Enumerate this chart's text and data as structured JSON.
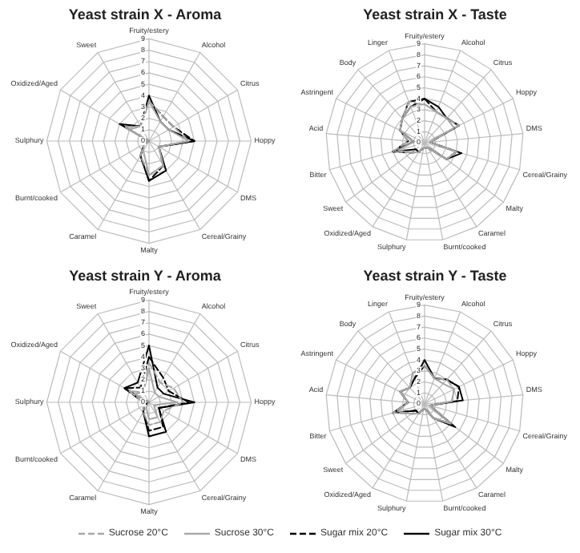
{
  "chart_data": [
    {
      "type": "radar",
      "title": "Yeast strain X - Aroma",
      "categories": [
        "Fruity/estery",
        "Alcohol",
        "Citrus",
        "Hoppy",
        "DMS",
        "Cereal/Grainy",
        "Malty",
        "Caramel",
        "Burnt/cooked",
        "Sulphury",
        "Oxidized/Aged",
        "Sweet"
      ],
      "ylim": [
        0,
        9
      ],
      "yticks": [
        0,
        1,
        2,
        3,
        4,
        5,
        6,
        7,
        8,
        9
      ],
      "grid": true,
      "marker": "none",
      "series": [
        {
          "color": "#a6a6a6",
          "line_style": "dashed",
          "values": [
            3.5,
            2.5,
            2.5,
            3.5,
            1,
            2.5,
            3,
            1.5,
            0.5,
            0,
            2.5,
            1.5
          ]
        },
        {
          "color": "#a6a6a6",
          "line_style": "solid",
          "values": [
            3.5,
            2,
            2,
            3.5,
            1,
            2.5,
            3,
            1,
            0.5,
            0,
            2,
            1.5
          ]
        },
        {
          "color": "#000000",
          "line_style": "dashed",
          "values": [
            3.5,
            2.5,
            2.5,
            4,
            1,
            2.5,
            3.5,
            1.5,
            0.5,
            0,
            2.5,
            1.5
          ]
        },
        {
          "color": "#000000",
          "line_style": "solid",
          "values": [
            4,
            2,
            2,
            4,
            1,
            3,
            3.5,
            1.5,
            0.5,
            0,
            3,
            1.5
          ]
        }
      ]
    },
    {
      "type": "radar",
      "title": "Yeast strain X - Taste",
      "categories": [
        "Fruity/estery",
        "Alcohol",
        "Citrus",
        "Hoppy",
        "DMS",
        "Cereal/Grainy",
        "Malty",
        "Caramel",
        "Burnt/cooked",
        "Sulphury",
        "Oxidized/Aged",
        "Sweet",
        "Bitter",
        "Acid",
        "Astringent",
        "Body",
        "Linger"
      ],
      "ylim": [
        0,
        9
      ],
      "yticks": [
        0,
        1,
        2,
        3,
        4,
        5,
        6,
        7,
        8,
        9
      ],
      "grid": true,
      "marker": "none",
      "series": [
        {
          "color": "#a6a6a6",
          "line_style": "dashed",
          "values": [
            3.5,
            3,
            3,
            3.5,
            0.5,
            3,
            2.5,
            0.5,
            0.5,
            0.5,
            1,
            1.5,
            3,
            1.5,
            2.5,
            3,
            4
          ]
        },
        {
          "color": "#a6a6a6",
          "line_style": "solid",
          "values": [
            3.5,
            3,
            3,
            3,
            0.5,
            3,
            2.5,
            0.5,
            0.5,
            0.5,
            1,
            1.5,
            2.5,
            1,
            2.5,
            3,
            3.5
          ]
        },
        {
          "color": "#000000",
          "line_style": "dashed",
          "values": [
            4,
            3,
            3,
            3.5,
            0.5,
            3,
            2.5,
            0.5,
            0.5,
            0.5,
            1,
            1.5,
            3,
            1.5,
            2.5,
            3,
            4
          ]
        },
        {
          "color": "#000000",
          "line_style": "solid",
          "values": [
            4,
            3.5,
            3,
            3.5,
            0.5,
            3.5,
            2.5,
            0.5,
            0.5,
            0.5,
            1,
            1,
            3,
            1,
            2.5,
            3,
            3.5
          ]
        }
      ]
    },
    {
      "type": "radar",
      "title": "Yeast strain Y - Aroma",
      "categories": [
        "Fruity/estery",
        "Alcohol",
        "Citrus",
        "Hoppy",
        "DMS",
        "Cereal/Grainy",
        "Malty",
        "Caramel",
        "Burnt/cooked",
        "Sulphury",
        "Oxidized/Aged",
        "Sweet"
      ],
      "ylim": [
        0,
        9
      ],
      "yticks": [
        0,
        1,
        2,
        3,
        4,
        5,
        6,
        7,
        8,
        9
      ],
      "grid": true,
      "marker": "none",
      "series": [
        {
          "color": "#a6a6a6",
          "line_style": "dashed",
          "values": [
            3.5,
            2,
            2.5,
            3,
            1.5,
            2,
            2,
            1,
            0.5,
            0.5,
            2,
            1
          ]
        },
        {
          "color": "#a6a6a6",
          "line_style": "solid",
          "values": [
            3,
            1,
            1,
            2.5,
            0.5,
            1.5,
            1.5,
            0.5,
            0,
            0,
            1.5,
            1
          ]
        },
        {
          "color": "#000000",
          "line_style": "dashed",
          "values": [
            4,
            2.5,
            2,
            3.5,
            1,
            2.5,
            2.5,
            1,
            0.5,
            0.5,
            2.5,
            1.5
          ]
        },
        {
          "color": "#000000",
          "line_style": "solid",
          "values": [
            5,
            1.5,
            1.5,
            4,
            1,
            3,
            3,
            1,
            0.5,
            0,
            2.5,
            2
          ]
        }
      ]
    },
    {
      "type": "radar",
      "title": "Yeast strain Y - Taste",
      "categories": [
        "Fruity/estery",
        "Alcohol",
        "Citrus",
        "Hoppy",
        "DMS",
        "Cereal/Grainy",
        "Malty",
        "Caramel",
        "Burnt/cooked",
        "Sulphury",
        "Oxidized/Aged",
        "Sweet",
        "Bitter",
        "Acid",
        "Astringent",
        "Body",
        "Linger"
      ],
      "ylim": [
        0,
        9
      ],
      "yticks": [
        0,
        1,
        2,
        3,
        4,
        5,
        6,
        7,
        8,
        9
      ],
      "grid": true,
      "marker": "none",
      "legend": "bottom",
      "series": [
        {
          "name": "Sucrose 20°C",
          "color": "#a6a6a6",
          "line_style": "dashed",
          "values": [
            3.5,
            2.5,
            3,
            3,
            2.5,
            0.5,
            3,
            1.5,
            0.5,
            0.5,
            1,
            1.5,
            3,
            1.5,
            2.5,
            2,
            3
          ]
        },
        {
          "name": "Sucrose 30°C",
          "color": "#a6a6a6",
          "line_style": "solid",
          "values": [
            3.5,
            2.5,
            2.5,
            3,
            2.5,
            0.5,
            3,
            1.5,
            0.5,
            0.5,
            1,
            1.5,
            2.5,
            1.5,
            2.5,
            2,
            3
          ]
        },
        {
          "name": "Sugar mix 20°C",
          "color": "#000000",
          "line_style": "dashed",
          "values": [
            3.5,
            2.5,
            3,
            3.5,
            3,
            0.5,
            3,
            1.5,
            0.5,
            0.5,
            1,
            1,
            3,
            1.5,
            2.5,
            2,
            2.5
          ]
        },
        {
          "name": "Sugar mix 30°C",
          "color": "#000000",
          "line_style": "solid",
          "values": [
            4,
            2.5,
            3,
            3.5,
            3.5,
            0.5,
            3.5,
            1.5,
            0.5,
            0.5,
            1,
            1,
            3,
            1.5,
            2.5,
            2,
            2.5
          ]
        }
      ]
    }
  ]
}
